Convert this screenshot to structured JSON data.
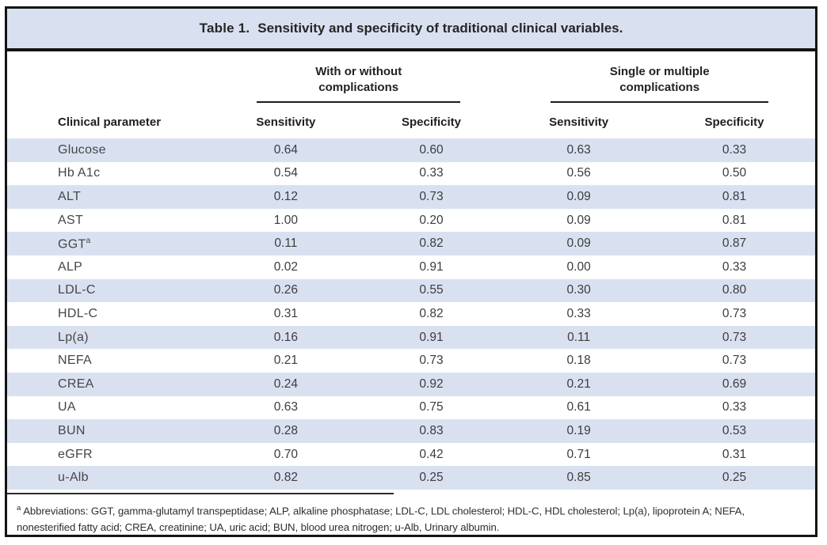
{
  "title": {
    "label": "Table 1.",
    "text": "Sensitivity and specificity of traditional clinical variables."
  },
  "header": {
    "param_col": "Clinical parameter",
    "groups": [
      {
        "label": "With or without complications"
      },
      {
        "label": "Single or multiple complications"
      }
    ],
    "subcolumns": [
      "Sensitivity",
      "Specificity",
      "Sensitivity",
      "Specificity"
    ]
  },
  "table": {
    "rows": [
      {
        "param": "Glucose",
        "values": [
          "0.64",
          "0.60",
          "0.63",
          "0.33"
        ]
      },
      {
        "param": "Hb A1c",
        "values": [
          "0.54",
          "0.33",
          "0.56",
          "0.50"
        ]
      },
      {
        "param": "ALT",
        "values": [
          "0.12",
          "0.73",
          "0.09",
          "0.81"
        ]
      },
      {
        "param": "AST",
        "values": [
          "1.00",
          "0.20",
          "0.09",
          "0.81"
        ]
      },
      {
        "param": "GGT",
        "sup": "a",
        "values": [
          "0.11",
          "0.82",
          "0.09",
          "0.87"
        ]
      },
      {
        "param": "ALP",
        "values": [
          "0.02",
          "0.91",
          "0.00",
          "0.33"
        ]
      },
      {
        "param": "LDL-C",
        "values": [
          "0.26",
          "0.55",
          "0.30",
          "0.80"
        ]
      },
      {
        "param": "HDL-C",
        "values": [
          "0.31",
          "0.82",
          "0.33",
          "0.73"
        ]
      },
      {
        "param": "Lp(a)",
        "values": [
          "0.16",
          "0.91",
          "0.11",
          "0.73"
        ]
      },
      {
        "param": "NEFA",
        "values": [
          "0.21",
          "0.73",
          "0.18",
          "0.73"
        ]
      },
      {
        "param": "CREA",
        "values": [
          "0.24",
          "0.92",
          "0.21",
          "0.69"
        ]
      },
      {
        "param": "UA",
        "values": [
          "0.63",
          "0.75",
          "0.61",
          "0.33"
        ]
      },
      {
        "param": "BUN",
        "values": [
          "0.28",
          "0.83",
          "0.19",
          "0.53"
        ]
      },
      {
        "param": "eGFR",
        "values": [
          "0.70",
          "0.42",
          "0.71",
          "0.31"
        ]
      },
      {
        "param": "u-Alb",
        "values": [
          "0.82",
          "0.25",
          "0.85",
          "0.25"
        ]
      }
    ]
  },
  "footnote": {
    "marker": "a",
    "text": "Abbreviations: GGT, gamma-glutamyl transpeptidase; ALP, alkaline phosphatase; LDL-C, LDL cholesterol; HDL-C, HDL cholesterol; Lp(a), lipoprotein A; NEFA, nonesterified fatty acid; CREA, creatinine; UA, uric acid; BUN, blood urea nitrogen; u-Alb, Urinary albumin."
  },
  "colors": {
    "shaded_row": "#d9e1f1",
    "title_bar": "#d9e1f1",
    "frame_border": "#141414"
  }
}
